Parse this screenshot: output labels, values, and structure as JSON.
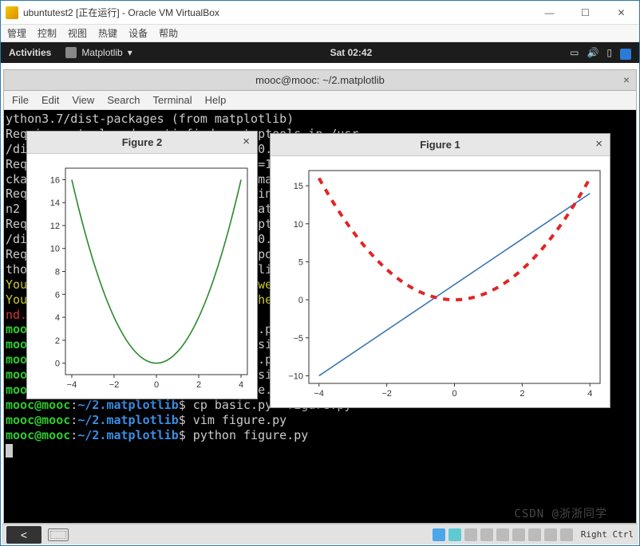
{
  "virtualbox": {
    "title": "ubuntutest2 [正在运行] - Oracle VM VirtualBox",
    "menu": [
      "管理",
      "控制",
      "视图",
      "热键",
      "设备",
      "帮助"
    ]
  },
  "gnome": {
    "activities": "Activities",
    "app_name": "Matplotlib",
    "clock": "Sat 02:42"
  },
  "terminal_window": {
    "title": "mooc@mooc: ~/2.matplotlib",
    "menu": [
      "File",
      "Edit",
      "View",
      "Search",
      "Terminal",
      "Help"
    ]
  },
  "terminal_lines": [
    {
      "segs": [
        {
          "c": "",
          "t": "ython3.7/dist-packages (from matplotlib)"
        }
      ]
    },
    {
      "segs": [
        {
          "c": "",
          "t": "Requirement already satisfied: setuptools in /usr"
        }
      ]
    },
    {
      "segs": [
        {
          "c": "",
          "t": "/dist-packages (from kiwisolver>=1.0.1->matplotlib"
        }
      ]
    },
    {
      "segs": [
        {
          "c": "",
          "t": "Requirement already satisfied: six>=1.5 in /usr/l"
        }
      ]
    },
    {
      "segs": [
        {
          "c": "",
          "t": "ckages (from python-dateutil>=2.1->matplotlib)"
        }
      ]
    },
    {
      "segs": [
        {
          "c": "",
          "t": "Requirement already satisfied: six in /usr/lib/py"
        }
      ]
    },
    {
      "segs": [
        {
          "c": "",
          "t": "n2 Repository (from cycler>=0.10->matplotlib) of"
        }
      ]
    },
    {
      "segs": [
        {
          "c": "",
          "t": "Requirement already satisfied: setuptools in /usr"
        }
      ]
    },
    {
      "segs": [
        {
          "c": "",
          "t": "/dist-packages (from kiwisolver>=1.0.1->matplotlib"
        }
      ]
    },
    {
      "segs": [
        {
          "c": "",
          "t": "Requirement already satisfied: backports.functool"
        }
      ]
    },
    {
      "segs": [
        {
          "c": "",
          "t": "thon2.7/dist-packages (from matplotlib)"
        }
      ]
    },
    {
      "segs": [
        {
          "c": "y",
          "t": "You are using pip version 9.0.1, however version "
        },
        {
          "c": "",
          "t": "19.1.1 is available."
        }
      ]
    },
    {
      "segs": [
        {
          "c": "y",
          "t": "You should consider upgrading via the 'pip install --upgrade pip' command."
        }
      ]
    },
    {
      "segs": [
        {
          "c": "r",
          "t": "nd."
        }
      ]
    },
    {
      "segs": [
        {
          "c": "g",
          "t": "mooc@mooc"
        },
        {
          "c": "",
          "t": ":"
        },
        {
          "c": "b",
          "t": "~/2.matplotlib"
        },
        {
          "c": "",
          "t": "$ vim basic.py"
        }
      ]
    },
    {
      "segs": [
        {
          "c": "g",
          "t": "mooc@mooc"
        },
        {
          "c": "",
          "t": ":"
        },
        {
          "c": "b",
          "t": "~/2.matplotlib"
        },
        {
          "c": "",
          "t": "$ python basic.py"
        }
      ]
    },
    {
      "segs": [
        {
          "c": "g",
          "t": "mooc@mooc"
        },
        {
          "c": "",
          "t": ":"
        },
        {
          "c": "b",
          "t": "~/2.matplotlib"
        },
        {
          "c": "",
          "t": "$ vim basic.py"
        }
      ]
    },
    {
      "segs": [
        {
          "c": "g",
          "t": "mooc@mooc"
        },
        {
          "c": "",
          "t": ":"
        },
        {
          "c": "b",
          "t": "~/2.matplotlib"
        },
        {
          "c": "",
          "t": "$ python basic.py"
        }
      ]
    },
    {
      "segs": [
        {
          "c": "g",
          "t": "mooc@mooc"
        },
        {
          "c": "",
          "t": ":"
        },
        {
          "c": "b",
          "t": "~/2.matplotlib"
        },
        {
          "c": "",
          "t": "$ vim figure.py"
        }
      ]
    },
    {
      "segs": [
        {
          "c": "g",
          "t": "mooc@mooc"
        },
        {
          "c": "",
          "t": ":"
        },
        {
          "c": "b",
          "t": "~/2.matplotlib"
        },
        {
          "c": "",
          "t": "$ cp basic.py  figure.py"
        }
      ]
    },
    {
      "segs": [
        {
          "c": "g",
          "t": "mooc@mooc"
        },
        {
          "c": "",
          "t": ":"
        },
        {
          "c": "b",
          "t": "~/2.matplotlib"
        },
        {
          "c": "",
          "t": "$ vim figure.py"
        }
      ]
    },
    {
      "segs": [
        {
          "c": "g",
          "t": "mooc@mooc"
        },
        {
          "c": "",
          "t": ":"
        },
        {
          "c": "b",
          "t": "~/2.matplotlib"
        },
        {
          "c": "",
          "t": "$ python figure.py"
        }
      ]
    }
  ],
  "figures": {
    "fig2": {
      "title": "Figure 2",
      "type": "line",
      "xlim": [
        -4.3,
        4.3
      ],
      "ylim": [
        -1,
        17
      ],
      "xticks": [
        -4,
        -2,
        0,
        2,
        4
      ],
      "yticks": [
        0,
        2,
        4,
        6,
        8,
        10,
        12,
        14,
        16
      ],
      "series": [
        {
          "kind": "parabola",
          "color": "#2a8a2a",
          "width": 1.6,
          "dash": "none"
        }
      ],
      "tick_fontsize": 11,
      "font_color": "#333",
      "background": "#ffffff",
      "axis_color": "#333",
      "grid": false
    },
    "fig1": {
      "title": "Figure 1",
      "type": "line",
      "xlim": [
        -4.3,
        4.3
      ],
      "ylim": [
        -11,
        17
      ],
      "xticks": [
        -4,
        -2,
        0,
        2,
        4
      ],
      "yticks": [
        -10,
        -5,
        0,
        5,
        10,
        15
      ],
      "series": [
        {
          "kind": "line",
          "slope": 3,
          "intercept": 2,
          "color": "#3a76b4",
          "width": 1.6,
          "dash": "none"
        },
        {
          "kind": "parabola",
          "color": "#e02525",
          "width": 4,
          "dash": "8,8"
        }
      ],
      "tick_fontsize": 11,
      "font_color": "#333",
      "background": "#ffffff",
      "axis_color": "#333",
      "grid": false
    }
  },
  "statusbar": {
    "right_ctrl": "Right Ctrl"
  },
  "watermark": "CSDN @浙浙同学"
}
